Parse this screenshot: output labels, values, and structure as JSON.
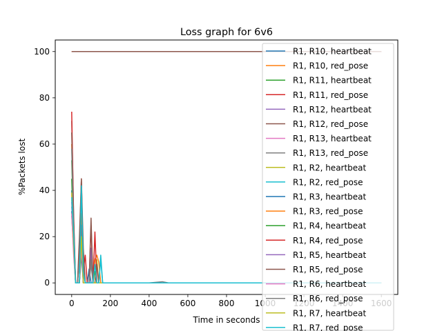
{
  "chart_data": {
    "type": "line",
    "title": "Loss graph for 6v6",
    "xlabel": "Time in seconds",
    "ylabel": "%Packets lost",
    "xlim": [
      -85,
      1685
    ],
    "ylim": [
      -5,
      105
    ],
    "xticks": [
      0,
      200,
      400,
      600,
      800,
      1000,
      1200,
      1400,
      1600
    ],
    "yticks": [
      0,
      20,
      40,
      60,
      80,
      100
    ],
    "grid": false,
    "legend_position": "upper-right",
    "series": [
      {
        "name": "R1, R10, heartbeat",
        "color": "#1f77b4",
        "x": [
          0,
          10,
          20,
          30,
          40,
          50,
          60,
          70,
          80,
          90,
          100,
          110,
          120,
          130,
          140,
          150,
          160,
          200,
          400,
          600,
          800,
          1000,
          1200,
          1400,
          1600
        ],
        "y": [
          40,
          22,
          0,
          0,
          12,
          28,
          10,
          0,
          0,
          6,
          0,
          0,
          0,
          0,
          0,
          0,
          0,
          0,
          0,
          0,
          0,
          0,
          0,
          0,
          0
        ]
      },
      {
        "name": "R1, R10, red_pose",
        "color": "#ff7f0e",
        "x": [
          0,
          1600
        ],
        "y": [
          100,
          100
        ]
      },
      {
        "name": "R1, R11, heartbeat",
        "color": "#2ca02c",
        "x": [
          0,
          10,
          20,
          30,
          40,
          50,
          60,
          70,
          80,
          90,
          100,
          110,
          120,
          130,
          140,
          150,
          160,
          200,
          400,
          600,
          800,
          1000,
          1200,
          1400,
          1600
        ],
        "y": [
          53,
          25,
          0,
          0,
          0,
          30,
          0,
          0,
          0,
          0,
          0,
          0,
          5,
          0,
          0,
          0,
          0,
          0,
          0,
          0,
          0,
          0,
          0,
          0,
          0
        ]
      },
      {
        "name": "R1, R11, red_pose",
        "color": "#d62728",
        "x": [
          0,
          1600
        ],
        "y": [
          100,
          100
        ]
      },
      {
        "name": "R1, R12, heartbeat",
        "color": "#9467bd",
        "x": [
          0,
          10,
          20,
          30,
          40,
          50,
          60,
          70,
          80,
          90,
          100,
          110,
          120,
          130,
          140,
          150,
          160,
          200,
          400,
          600,
          800,
          1000,
          1200,
          1400,
          1600
        ],
        "y": [
          29,
          15,
          0,
          0,
          0,
          18,
          8,
          0,
          0,
          0,
          12,
          0,
          0,
          0,
          0,
          0,
          0,
          0,
          0,
          0,
          0,
          0,
          0,
          0,
          0
        ]
      },
      {
        "name": "R1, R12, red_pose",
        "color": "#8c564b",
        "x": [
          0,
          1600
        ],
        "y": [
          100,
          100
        ]
      },
      {
        "name": "R1, R13, heartbeat",
        "color": "#e377c2",
        "x": [
          0,
          10,
          20,
          30,
          40,
          50,
          60,
          70,
          80,
          90,
          100,
          110,
          120,
          130,
          140,
          150,
          160,
          200,
          400,
          600,
          800,
          1000,
          1200,
          1400,
          1600
        ],
        "y": [
          38,
          18,
          0,
          0,
          10,
          25,
          0,
          0,
          0,
          0,
          0,
          0,
          0,
          0,
          0,
          0,
          0,
          0,
          0,
          0,
          0,
          0,
          0,
          0,
          0
        ]
      },
      {
        "name": "R1, R13, red_pose",
        "color": "#7f7f7f",
        "x": [
          0,
          10,
          20,
          30,
          40,
          50,
          60,
          70,
          80,
          90,
          100,
          110,
          120,
          130,
          140,
          150,
          160,
          200,
          400,
          470,
          500,
          600,
          800,
          1000,
          1200,
          1400,
          1600
        ],
        "y": [
          70,
          30,
          0,
          0,
          15,
          28,
          12,
          0,
          0,
          0,
          8,
          0,
          0,
          0,
          0,
          0,
          0,
          0,
          0,
          0.5,
          0,
          0,
          0,
          0,
          0,
          0,
          0
        ]
      },
      {
        "name": "R1, R2, heartbeat",
        "color": "#bcbd22",
        "x": [
          0,
          10,
          20,
          30,
          40,
          50,
          60,
          70,
          80,
          90,
          100,
          110,
          120,
          130,
          140,
          150,
          160,
          200,
          400,
          600,
          800,
          1000,
          1200,
          1400,
          1600
        ],
        "y": [
          36,
          20,
          0,
          0,
          0,
          22,
          0,
          0,
          0,
          0,
          0,
          0,
          0,
          10,
          0,
          0,
          0,
          0,
          0,
          0,
          0,
          0,
          0,
          0,
          0
        ]
      },
      {
        "name": "R1, R2, red_pose",
        "color": "#17becf",
        "x": [
          0,
          10,
          20,
          30,
          40,
          50,
          60,
          70,
          80,
          90,
          100,
          110,
          120,
          130,
          140,
          150,
          160,
          200,
          400,
          600,
          800,
          1000,
          1200,
          1400,
          1600
        ],
        "y": [
          33,
          20,
          0,
          0,
          0,
          44,
          10,
          0,
          0,
          0,
          0,
          0,
          0,
          0,
          0,
          12,
          0,
          0,
          0,
          0,
          0,
          0,
          0,
          0,
          0
        ]
      },
      {
        "name": "R1, R3, heartbeat",
        "color": "#1f77b4",
        "x": [
          0,
          10,
          20,
          30,
          40,
          50,
          60,
          70,
          80,
          90,
          100,
          110,
          120,
          130,
          140,
          150,
          160,
          200,
          400,
          600,
          800,
          1000,
          1200,
          1400,
          1600
        ],
        "y": [
          31,
          14,
          0,
          0,
          0,
          12,
          0,
          0,
          0,
          0,
          0,
          0,
          0,
          0,
          0,
          0,
          0,
          0,
          0,
          0,
          0,
          0,
          0,
          0,
          0
        ]
      },
      {
        "name": "R1, R3, red_pose",
        "color": "#ff7f0e",
        "x": [
          0,
          10,
          20,
          30,
          40,
          50,
          60,
          70,
          80,
          90,
          100,
          110,
          120,
          130,
          140,
          150,
          160,
          200,
          400,
          600,
          800,
          1000,
          1200,
          1400,
          1600
        ],
        "y": [
          60,
          25,
          0,
          0,
          10,
          30,
          8,
          0,
          0,
          0,
          0,
          0,
          10,
          12,
          9,
          0,
          0,
          0,
          0,
          0,
          0,
          0,
          0,
          0,
          0
        ]
      },
      {
        "name": "R1, R4, heartbeat",
        "color": "#2ca02c",
        "x": [
          0,
          10,
          20,
          30,
          40,
          50,
          60,
          70,
          80,
          90,
          100,
          110,
          120,
          130,
          140,
          150,
          160,
          200,
          400,
          600,
          800,
          1000,
          1200,
          1400,
          1600
        ],
        "y": [
          45,
          18,
          0,
          0,
          0,
          20,
          0,
          0,
          0,
          0,
          0,
          0,
          0,
          0,
          0,
          0,
          0,
          0,
          0,
          0,
          0,
          0,
          0,
          0,
          0
        ]
      },
      {
        "name": "R1, R4, red_pose",
        "color": "#d62728",
        "x": [
          0,
          10,
          20,
          30,
          40,
          50,
          60,
          70,
          80,
          90,
          100,
          110,
          120,
          130,
          140,
          150,
          160,
          200,
          400,
          600,
          800,
          1000,
          1200,
          1400,
          1600
        ],
        "y": [
          74,
          28,
          0,
          0,
          15,
          45,
          5,
          12,
          0,
          0,
          25,
          0,
          22,
          0,
          0,
          0,
          0,
          0,
          0,
          0,
          0,
          0,
          0,
          0,
          0
        ]
      },
      {
        "name": "R1, R5, heartbeat",
        "color": "#9467bd",
        "x": [
          0,
          10,
          20,
          30,
          40,
          50,
          60,
          70,
          80,
          90,
          100,
          110,
          120,
          130,
          140,
          150,
          160,
          200,
          400,
          600,
          800,
          1000,
          1200,
          1400,
          1600
        ],
        "y": [
          35,
          16,
          0,
          0,
          0,
          18,
          0,
          0,
          0,
          0,
          15,
          0,
          0,
          0,
          0,
          0,
          0,
          0,
          0,
          0,
          0,
          0,
          0,
          0,
          0
        ]
      },
      {
        "name": "R1, R5, red_pose",
        "color": "#8c564b",
        "x": [
          0,
          10,
          20,
          30,
          40,
          50,
          60,
          70,
          80,
          90,
          100,
          110,
          120,
          130,
          140,
          150,
          160,
          200,
          400,
          600,
          800,
          1000,
          1200,
          1400,
          1600
        ],
        "y": [
          65,
          26,
          0,
          0,
          20,
          45,
          15,
          0,
          0,
          0,
          28,
          0,
          0,
          8,
          0,
          0,
          0,
          0,
          0,
          0,
          0,
          0,
          0,
          0,
          0
        ]
      },
      {
        "name": "R1, R6, heartbeat",
        "color": "#e377c2",
        "x": [
          0,
          10,
          20,
          30,
          40,
          50,
          60,
          70,
          80,
          90,
          100,
          110,
          120,
          130,
          140,
          150,
          160,
          200,
          400,
          600,
          800,
          1000,
          1200,
          1400,
          1600
        ],
        "y": [
          30,
          12,
          0,
          0,
          0,
          15,
          0,
          0,
          0,
          0,
          0,
          0,
          0,
          0,
          0,
          0,
          0,
          0,
          0,
          0,
          0,
          0,
          0,
          0,
          0
        ]
      },
      {
        "name": "R1, R6, red_pose",
        "color": "#7f7f7f",
        "x": [
          0,
          10,
          20,
          30,
          40,
          50,
          60,
          70,
          80,
          90,
          100,
          110,
          120,
          130,
          140,
          150,
          160,
          200,
          400,
          600,
          800,
          1000,
          1200,
          1400,
          1600
        ],
        "y": [
          58,
          22,
          0,
          0,
          10,
          25,
          0,
          0,
          0,
          0,
          10,
          0,
          0,
          0,
          0,
          0,
          0,
          0,
          0,
          0,
          0,
          0,
          0,
          0,
          0
        ]
      },
      {
        "name": "R1, R7, heartbeat",
        "color": "#bcbd22",
        "x": [
          0,
          10,
          20,
          30,
          40,
          50,
          60,
          70,
          80,
          90,
          100,
          110,
          120,
          130,
          140,
          150,
          160,
          200,
          400,
          600,
          800,
          1000,
          1200,
          1400,
          1600
        ],
        "y": [
          39,
          17,
          0,
          0,
          0,
          20,
          0,
          0,
          0,
          0,
          0,
          0,
          0,
          0,
          0,
          0,
          0,
          0,
          0,
          0,
          0,
          0,
          0,
          0,
          0
        ]
      },
      {
        "name": "R1, R7, red_pose",
        "color": "#17becf",
        "x": [
          0,
          10,
          20,
          30,
          40,
          50,
          60,
          70,
          80,
          90,
          100,
          110,
          120,
          130,
          140,
          150,
          160,
          200,
          400,
          600,
          800,
          1000,
          1200,
          1400,
          1600
        ],
        "y": [
          37,
          22,
          0,
          0,
          0,
          42,
          5,
          0,
          0,
          0,
          0,
          0,
          8,
          0,
          0,
          10,
          0,
          0,
          0,
          0,
          0,
          0,
          0,
          0,
          0
        ]
      }
    ]
  }
}
